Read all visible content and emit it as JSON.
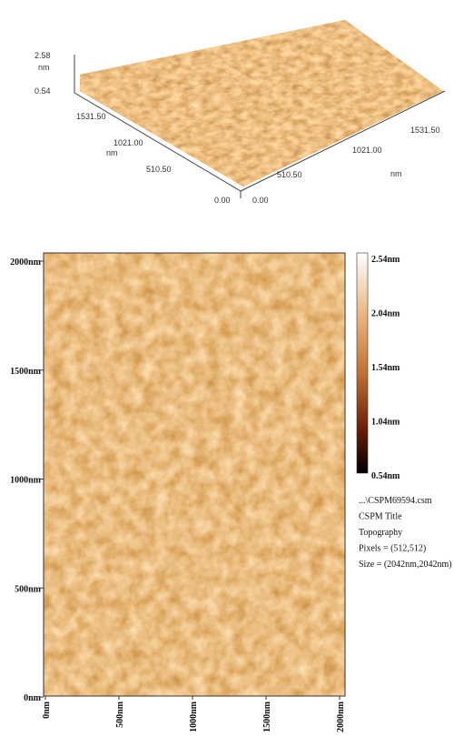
{
  "surface_3d": {
    "z_axis": {
      "ticks": [
        "2.58",
        "0.54"
      ],
      "unit": "nm"
    },
    "y_axis": {
      "ticks": [
        "1531.50",
        "1021.00",
        "510.50",
        "0.00"
      ],
      "unit": "nm"
    },
    "x_axis": {
      "ticks": [
        "0.00",
        "510.50",
        "1021.00",
        "1531.50"
      ],
      "unit": "nm"
    }
  },
  "image_2d": {
    "y_ticks": [
      "2000nm",
      "1500nm",
      "1000nm",
      "500nm",
      "0nm"
    ],
    "x_ticks": [
      "0nm",
      "500nm",
      "1000nm",
      "1500nm",
      "2000nm"
    ],
    "colorbar": [
      "2.54nm",
      "2.04nm",
      "1.54nm",
      "1.04nm",
      "0.54nm"
    ],
    "info": [
      "...\\CSPM69594.csm",
      "CSPM Title",
      "Topography",
      "Pixels = (512,512)",
      "Size = (2042nm,2042nm)"
    ]
  }
}
